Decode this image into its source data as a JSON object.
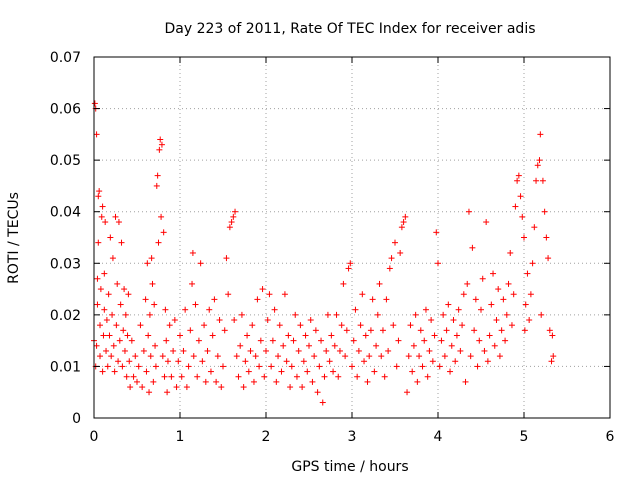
{
  "chart_data": {
    "type": "scatter",
    "title": "Day 223 of 2011, Rate Of TEC Index for receiver adis",
    "xlabel": "GPS time / hours",
    "ylabel": "ROTI / TECUs",
    "xlim": [
      0,
      6
    ],
    "ylim": [
      0,
      0.07
    ],
    "xticks": [
      "0",
      "1",
      "2",
      "3",
      "4",
      "5",
      "6"
    ],
    "yticks": [
      "0",
      "0.01",
      "0.02",
      "0.03",
      "0.04",
      "0.05",
      "0.06",
      "0.07"
    ],
    "grid": true,
    "marker": "plus",
    "color": "#ff0000",
    "series": [
      {
        "points": [
          [
            0.0,
            0.015
          ],
          [
            0.01,
            0.061
          ],
          [
            0.02,
            0.06
          ],
          [
            0.03,
            0.055
          ],
          [
            0.02,
            0.01
          ],
          [
            0.03,
            0.014
          ],
          [
            0.04,
            0.022
          ],
          [
            0.04,
            0.027
          ],
          [
            0.05,
            0.034
          ],
          [
            0.05,
            0.043
          ],
          [
            0.06,
            0.044
          ],
          [
            0.07,
            0.012
          ],
          [
            0.07,
            0.018
          ],
          [
            0.08,
            0.025
          ],
          [
            0.09,
            0.039
          ],
          [
            0.1,
            0.041
          ],
          [
            0.1,
            0.009
          ],
          [
            0.11,
            0.016
          ],
          [
            0.12,
            0.021
          ],
          [
            0.12,
            0.028
          ],
          [
            0.13,
            0.038
          ],
          [
            0.14,
            0.013
          ],
          [
            0.15,
            0.019
          ],
          [
            0.16,
            0.01
          ],
          [
            0.17,
            0.024
          ],
          [
            0.18,
            0.016
          ],
          [
            0.19,
            0.035
          ],
          [
            0.2,
            0.012
          ],
          [
            0.21,
            0.02
          ],
          [
            0.22,
            0.031
          ],
          [
            0.23,
            0.014
          ],
          [
            0.24,
            0.009
          ],
          [
            0.25,
            0.039
          ],
          [
            0.26,
            0.018
          ],
          [
            0.27,
            0.026
          ],
          [
            0.28,
            0.011
          ],
          [
            0.29,
            0.038
          ],
          [
            0.3,
            0.015
          ],
          [
            0.31,
            0.022
          ],
          [
            0.32,
            0.034
          ],
          [
            0.33,
            0.01
          ],
          [
            0.34,
            0.017
          ],
          [
            0.35,
            0.025
          ],
          [
            0.36,
            0.013
          ],
          [
            0.37,
            0.02
          ],
          [
            0.38,
            0.008
          ],
          [
            0.39,
            0.016
          ],
          [
            0.4,
            0.024
          ],
          [
            0.41,
            0.011
          ],
          [
            0.42,
            0.006
          ],
          [
            0.44,
            0.015
          ],
          [
            0.46,
            0.008
          ],
          [
            0.48,
            0.012
          ],
          [
            0.5,
            0.007
          ],
          [
            0.52,
            0.01
          ],
          [
            0.54,
            0.018
          ],
          [
            0.56,
            0.006
          ],
          [
            0.58,
            0.013
          ],
          [
            0.6,
            0.023
          ],
          [
            0.61,
            0.009
          ],
          [
            0.62,
            0.03
          ],
          [
            0.63,
            0.016
          ],
          [
            0.64,
            0.005
          ],
          [
            0.65,
            0.02
          ],
          [
            0.66,
            0.012
          ],
          [
            0.67,
            0.031
          ],
          [
            0.68,
            0.026
          ],
          [
            0.69,
            0.007
          ],
          [
            0.7,
            0.022
          ],
          [
            0.71,
            0.014
          ],
          [
            0.72,
            0.01
          ],
          [
            0.73,
            0.045
          ],
          [
            0.74,
            0.047
          ],
          [
            0.75,
            0.034
          ],
          [
            0.76,
            0.052
          ],
          [
            0.77,
            0.054
          ],
          [
            0.78,
            0.039
          ],
          [
            0.79,
            0.053
          ],
          [
            0.8,
            0.012
          ],
          [
            0.81,
            0.036
          ],
          [
            0.82,
            0.008
          ],
          [
            0.83,
            0.021
          ],
          [
            0.84,
            0.015
          ],
          [
            0.85,
            0.005
          ],
          [
            0.86,
            0.011
          ],
          [
            0.88,
            0.018
          ],
          [
            0.9,
            0.008
          ],
          [
            0.92,
            0.013
          ],
          [
            0.94,
            0.019
          ],
          [
            0.96,
            0.006
          ],
          [
            0.98,
            0.011
          ],
          [
            1.0,
            0.016
          ],
          [
            1.02,
            0.008
          ],
          [
            1.04,
            0.013
          ],
          [
            1.06,
            0.021
          ],
          [
            1.08,
            0.006
          ],
          [
            1.1,
            0.01
          ],
          [
            1.12,
            0.017
          ],
          [
            1.14,
            0.026
          ],
          [
            1.15,
            0.032
          ],
          [
            1.16,
            0.012
          ],
          [
            1.18,
            0.022
          ],
          [
            1.2,
            0.008
          ],
          [
            1.22,
            0.015
          ],
          [
            1.24,
            0.03
          ],
          [
            1.26,
            0.011
          ],
          [
            1.28,
            0.018
          ],
          [
            1.3,
            0.007
          ],
          [
            1.32,
            0.013
          ],
          [
            1.34,
            0.021
          ],
          [
            1.36,
            0.009
          ],
          [
            1.38,
            0.016
          ],
          [
            1.4,
            0.023
          ],
          [
            1.42,
            0.007
          ],
          [
            1.44,
            0.012
          ],
          [
            1.46,
            0.019
          ],
          [
            1.48,
            0.006
          ],
          [
            1.5,
            0.01
          ],
          [
            1.52,
            0.017
          ],
          [
            1.54,
            0.031
          ],
          [
            1.56,
            0.024
          ],
          [
            1.58,
            0.037
          ],
          [
            1.6,
            0.038
          ],
          [
            1.62,
            0.039
          ],
          [
            1.63,
            0.019
          ],
          [
            1.64,
            0.04
          ],
          [
            1.66,
            0.012
          ],
          [
            1.68,
            0.008
          ],
          [
            1.7,
            0.014
          ],
          [
            1.72,
            0.02
          ],
          [
            1.74,
            0.006
          ],
          [
            1.76,
            0.011
          ],
          [
            1.78,
            0.016
          ],
          [
            1.8,
            0.009
          ],
          [
            1.82,
            0.013
          ],
          [
            1.84,
            0.018
          ],
          [
            1.86,
            0.007
          ],
          [
            1.88,
            0.012
          ],
          [
            1.9,
            0.023
          ],
          [
            1.92,
            0.01
          ],
          [
            1.94,
            0.015
          ],
          [
            1.96,
            0.025
          ],
          [
            1.98,
            0.008
          ],
          [
            2.0,
            0.013
          ],
          [
            2.02,
            0.019
          ],
          [
            2.04,
            0.024
          ],
          [
            2.06,
            0.01
          ],
          [
            2.08,
            0.015
          ],
          [
            2.1,
            0.021
          ],
          [
            2.12,
            0.007
          ],
          [
            2.14,
            0.012
          ],
          [
            2.16,
            0.018
          ],
          [
            2.18,
            0.009
          ],
          [
            2.2,
            0.014
          ],
          [
            2.22,
            0.024
          ],
          [
            2.24,
            0.011
          ],
          [
            2.26,
            0.016
          ],
          [
            2.28,
            0.006
          ],
          [
            2.3,
            0.01
          ],
          [
            2.32,
            0.015
          ],
          [
            2.34,
            0.02
          ],
          [
            2.36,
            0.008
          ],
          [
            2.38,
            0.013
          ],
          [
            2.4,
            0.018
          ],
          [
            2.42,
            0.006
          ],
          [
            2.44,
            0.011
          ],
          [
            2.46,
            0.016
          ],
          [
            2.48,
            0.009
          ],
          [
            2.5,
            0.014
          ],
          [
            2.52,
            0.019
          ],
          [
            2.54,
            0.007
          ],
          [
            2.56,
            0.012
          ],
          [
            2.58,
            0.017
          ],
          [
            2.6,
            0.005
          ],
          [
            2.62,
            0.01
          ],
          [
            2.64,
            0.015
          ],
          [
            2.66,
            0.003
          ],
          [
            2.68,
            0.008
          ],
          [
            2.7,
            0.013
          ],
          [
            2.72,
            0.02
          ],
          [
            2.74,
            0.011
          ],
          [
            2.76,
            0.016
          ],
          [
            2.78,
            0.009
          ],
          [
            2.8,
            0.014
          ],
          [
            2.82,
            0.02
          ],
          [
            2.84,
            0.008
          ],
          [
            2.86,
            0.013
          ],
          [
            2.88,
            0.018
          ],
          [
            2.9,
            0.026
          ],
          [
            2.92,
            0.012
          ],
          [
            2.94,
            0.017
          ],
          [
            2.96,
            0.029
          ],
          [
            2.98,
            0.03
          ],
          [
            3.0,
            0.01
          ],
          [
            3.02,
            0.015
          ],
          [
            3.04,
            0.021
          ],
          [
            3.06,
            0.008
          ],
          [
            3.08,
            0.013
          ],
          [
            3.1,
            0.018
          ],
          [
            3.12,
            0.024
          ],
          [
            3.14,
            0.011
          ],
          [
            3.16,
            0.016
          ],
          [
            3.18,
            0.007
          ],
          [
            3.2,
            0.012
          ],
          [
            3.22,
            0.017
          ],
          [
            3.24,
            0.023
          ],
          [
            3.26,
            0.009
          ],
          [
            3.28,
            0.014
          ],
          [
            3.3,
            0.02
          ],
          [
            3.32,
            0.026
          ],
          [
            3.34,
            0.012
          ],
          [
            3.36,
            0.017
          ],
          [
            3.38,
            0.008
          ],
          [
            3.4,
            0.023
          ],
          [
            3.42,
            0.013
          ],
          [
            3.44,
            0.029
          ],
          [
            3.46,
            0.031
          ],
          [
            3.48,
            0.018
          ],
          [
            3.5,
            0.034
          ],
          [
            3.52,
            0.01
          ],
          [
            3.54,
            0.015
          ],
          [
            3.56,
            0.032
          ],
          [
            3.58,
            0.037
          ],
          [
            3.6,
            0.038
          ],
          [
            3.62,
            0.039
          ],
          [
            3.64,
            0.005
          ],
          [
            3.66,
            0.012
          ],
          [
            3.68,
            0.018
          ],
          [
            3.7,
            0.009
          ],
          [
            3.72,
            0.014
          ],
          [
            3.74,
            0.02
          ],
          [
            3.76,
            0.007
          ],
          [
            3.78,
            0.012
          ],
          [
            3.8,
            0.017
          ],
          [
            3.82,
            0.01
          ],
          [
            3.84,
            0.015
          ],
          [
            3.86,
            0.021
          ],
          [
            3.88,
            0.008
          ],
          [
            3.9,
            0.013
          ],
          [
            3.92,
            0.019
          ],
          [
            3.94,
            0.011
          ],
          [
            3.96,
            0.016
          ],
          [
            3.98,
            0.036
          ],
          [
            4.0,
            0.03
          ],
          [
            4.02,
            0.01
          ],
          [
            4.04,
            0.015
          ],
          [
            4.06,
            0.02
          ],
          [
            4.08,
            0.012
          ],
          [
            4.1,
            0.017
          ],
          [
            4.12,
            0.022
          ],
          [
            4.14,
            0.009
          ],
          [
            4.16,
            0.014
          ],
          [
            4.18,
            0.019
          ],
          [
            4.2,
            0.011
          ],
          [
            4.22,
            0.016
          ],
          [
            4.24,
            0.021
          ],
          [
            4.26,
            0.013
          ],
          [
            4.28,
            0.018
          ],
          [
            4.3,
            0.024
          ],
          [
            4.32,
            0.007
          ],
          [
            4.34,
            0.026
          ],
          [
            4.36,
            0.04
          ],
          [
            4.38,
            0.012
          ],
          [
            4.4,
            0.033
          ],
          [
            4.42,
            0.017
          ],
          [
            4.44,
            0.023
          ],
          [
            4.46,
            0.01
          ],
          [
            4.48,
            0.015
          ],
          [
            4.5,
            0.021
          ],
          [
            4.52,
            0.027
          ],
          [
            4.54,
            0.013
          ],
          [
            4.56,
            0.038
          ],
          [
            4.58,
            0.011
          ],
          [
            4.6,
            0.016
          ],
          [
            4.62,
            0.022
          ],
          [
            4.64,
            0.028
          ],
          [
            4.66,
            0.014
          ],
          [
            4.68,
            0.019
          ],
          [
            4.7,
            0.025
          ],
          [
            4.72,
            0.012
          ],
          [
            4.74,
            0.017
          ],
          [
            4.76,
            0.023
          ],
          [
            4.78,
            0.015
          ],
          [
            4.8,
            0.02
          ],
          [
            4.82,
            0.026
          ],
          [
            4.84,
            0.032
          ],
          [
            4.86,
            0.018
          ],
          [
            4.88,
            0.024
          ],
          [
            4.9,
            0.041
          ],
          [
            4.92,
            0.046
          ],
          [
            4.94,
            0.047
          ],
          [
            4.96,
            0.043
          ],
          [
            4.98,
            0.039
          ],
          [
            5.0,
            0.035
          ],
          [
            5.01,
            0.017
          ],
          [
            5.02,
            0.022
          ],
          [
            5.04,
            0.028
          ],
          [
            5.06,
            0.019
          ],
          [
            5.08,
            0.024
          ],
          [
            5.1,
            0.03
          ],
          [
            5.12,
            0.037
          ],
          [
            5.14,
            0.046
          ],
          [
            5.16,
            0.049
          ],
          [
            5.18,
            0.05
          ],
          [
            5.19,
            0.055
          ],
          [
            5.2,
            0.02
          ],
          [
            5.22,
            0.046
          ],
          [
            5.24,
            0.04
          ],
          [
            5.26,
            0.035
          ],
          [
            5.28,
            0.031
          ],
          [
            5.3,
            0.017
          ],
          [
            5.32,
            0.011
          ],
          [
            5.33,
            0.016
          ],
          [
            5.34,
            0.012
          ]
        ]
      }
    ]
  }
}
